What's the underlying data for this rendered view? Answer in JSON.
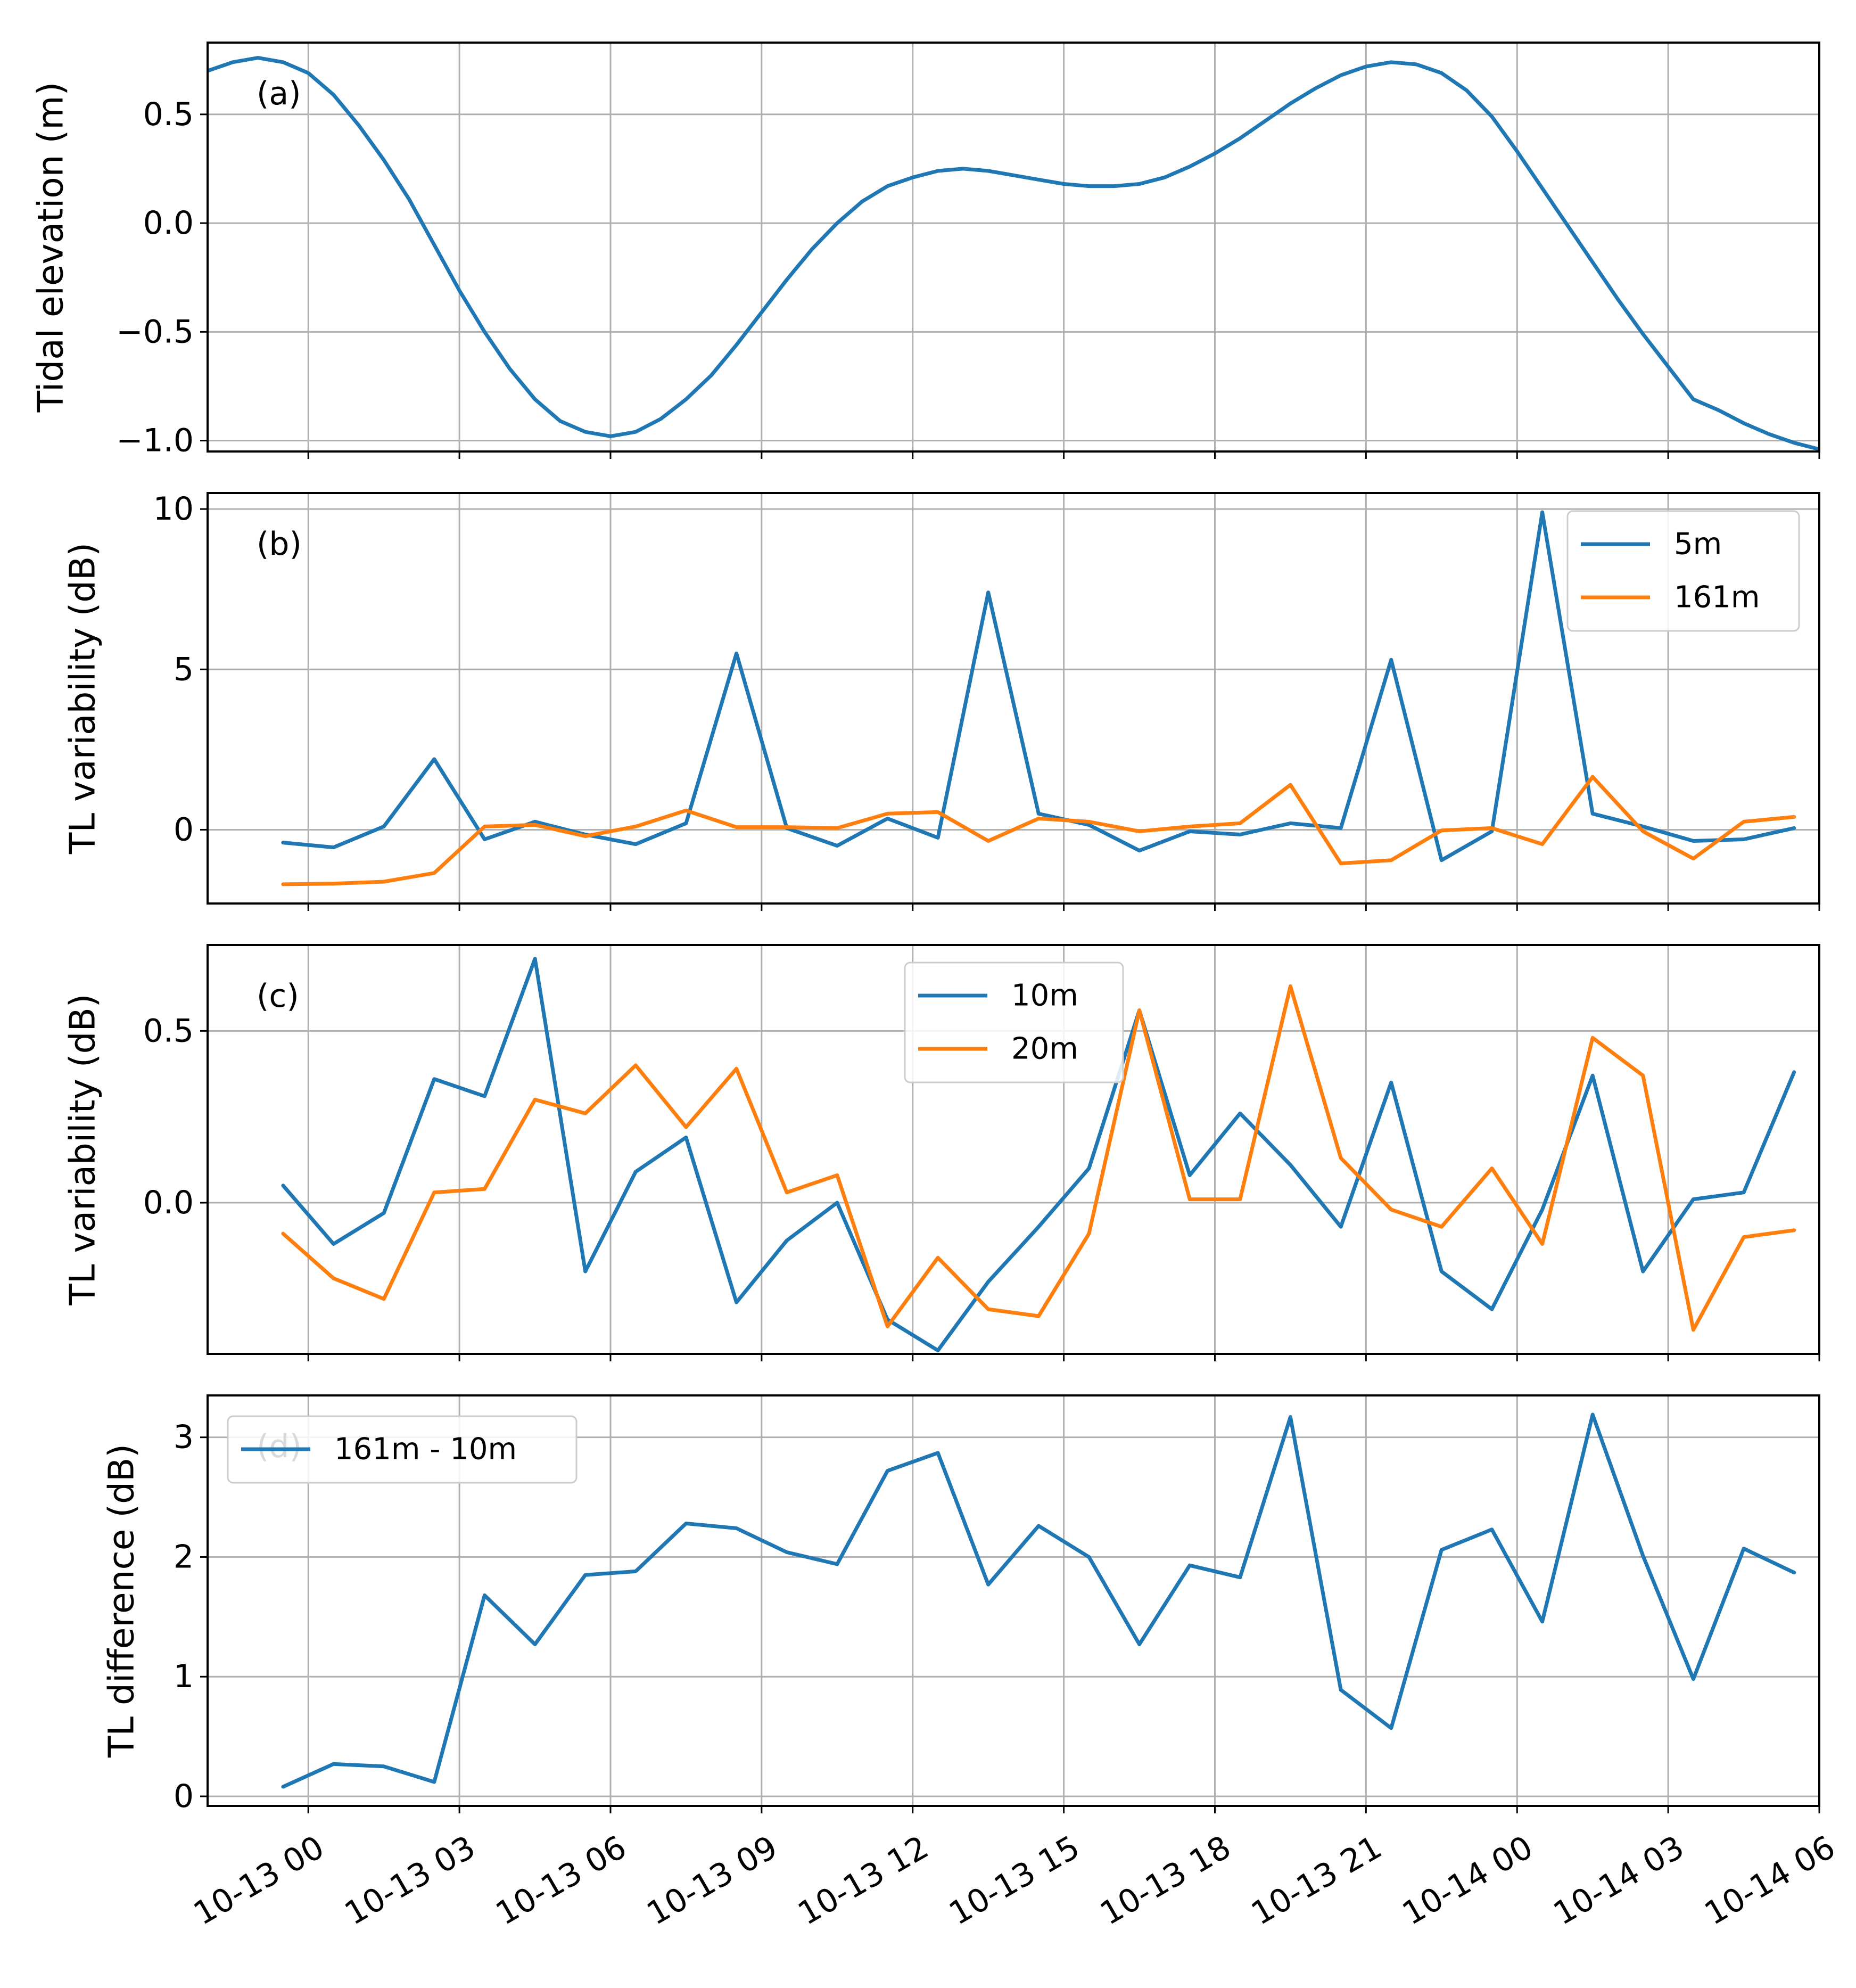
{
  "colors": {
    "blue": "#1f77b4",
    "orange": "#ff7f0e",
    "grid": "#b0b0b0",
    "frame": "#000000"
  },
  "x_axis": {
    "ticks": [
      {
        "h": 0,
        "label": "10-13 00"
      },
      {
        "h": 3,
        "label": "10-13 03"
      },
      {
        "h": 6,
        "label": "10-13 06"
      },
      {
        "h": 9,
        "label": "10-13 09"
      },
      {
        "h": 12,
        "label": "10-13 12"
      },
      {
        "h": 15,
        "label": "10-13 15"
      },
      {
        "h": 18,
        "label": "10-13 18"
      },
      {
        "h": 21,
        "label": "10-13 21"
      },
      {
        "h": 24,
        "label": "10-14 00"
      },
      {
        "h": 27,
        "label": "10-14 03"
      },
      {
        "h": 30,
        "label": "10-14 06"
      }
    ]
  },
  "chart_data": [
    {
      "type": "line",
      "panel": "(a)",
      "ylabel": "Tidal elevation (m)",
      "xlim": [
        -2,
        30
      ],
      "ylim": [
        -1.05,
        0.83
      ],
      "yticks": [
        {
          "v": 0.5,
          "label": "0.5"
        },
        {
          "v": 0.0,
          "label": "0.0"
        },
        {
          "v": -0.5,
          "label": "−0.5"
        },
        {
          "v": -1.0,
          "label": "−1.0"
        }
      ],
      "legend": null,
      "series": [
        {
          "name": "Tidal elevation",
          "color": "#1f77b4",
          "x": [
            -2,
            -1.5,
            -1,
            -0.5,
            0,
            0.5,
            1,
            1.5,
            2,
            2.5,
            3,
            3.5,
            4,
            4.5,
            5,
            5.5,
            6,
            6.5,
            7,
            7.5,
            8,
            8.5,
            9,
            9.5,
            10,
            10.5,
            11,
            11.5,
            12,
            12.5,
            13,
            13.5,
            14,
            14.5,
            15,
            15.5,
            16,
            16.5,
            17,
            17.5,
            18,
            18.5,
            19,
            19.5,
            20,
            20.5,
            21,
            21.5,
            22,
            22.5,
            23,
            23.5,
            24,
            24.5,
            25,
            25.5,
            26,
            26.5,
            27,
            27.5,
            28,
            28.5,
            29,
            29.5,
            30
          ],
          "y": [
            0.7,
            0.74,
            0.76,
            0.74,
            0.69,
            0.59,
            0.45,
            0.29,
            0.11,
            -0.1,
            -0.31,
            -0.5,
            -0.67,
            -0.81,
            -0.91,
            -0.96,
            -0.98,
            -0.96,
            -0.9,
            -0.81,
            -0.7,
            -0.56,
            -0.41,
            -0.26,
            -0.12,
            0.0,
            0.1,
            0.17,
            0.21,
            0.24,
            0.25,
            0.24,
            0.22,
            0.2,
            0.18,
            0.17,
            0.17,
            0.18,
            0.21,
            0.26,
            0.32,
            0.39,
            0.47,
            0.55,
            0.62,
            0.68,
            0.72,
            0.74,
            0.73,
            0.69,
            0.61,
            0.49,
            0.33,
            0.16,
            -0.01,
            -0.18,
            -0.35,
            -0.51,
            -0.66,
            -0.81,
            -0.86,
            -0.92,
            -0.97,
            -1.01,
            -1.04
          ]
        }
      ]
    },
    {
      "type": "line",
      "panel": "(b)",
      "ylabel": "TL variability (dB)",
      "xlim": [
        -2,
        30
      ],
      "ylim": [
        -2.3,
        10.5
      ],
      "yticks": [
        {
          "v": 10,
          "label": "10"
        },
        {
          "v": 5,
          "label": "5"
        },
        {
          "v": 0,
          "label": "0"
        }
      ],
      "legend": {
        "position": "top-right"
      },
      "series": [
        {
          "name": "5m",
          "color": "#1f77b4",
          "x": [
            -0.5,
            0.5,
            1.5,
            2.5,
            3.5,
            4.5,
            5.5,
            6.5,
            7.5,
            8.5,
            9.5,
            10.5,
            11.5,
            12.5,
            13.5,
            14.5,
            15.5,
            16.5,
            17.5,
            18.5,
            19.5,
            20.5,
            21.5,
            22.5,
            23.5,
            24.5,
            25.5,
            26.5,
            27.5,
            28.5,
            29.5
          ],
          "y": [
            -0.4,
            -0.55,
            0.1,
            2.2,
            -0.3,
            0.25,
            -0.15,
            -0.45,
            0.2,
            5.5,
            0.05,
            -0.5,
            0.35,
            -0.25,
            7.4,
            0.5,
            0.15,
            -0.65,
            -0.05,
            -0.15,
            0.2,
            0.05,
            5.3,
            -0.95,
            -0.05,
            9.9,
            0.5,
            0.1,
            -0.35,
            -0.3,
            0.05
          ]
        },
        {
          "name": "161m",
          "color": "#ff7f0e",
          "x": [
            -0.5,
            0.5,
            1.5,
            2.5,
            3.5,
            4.5,
            5.5,
            6.5,
            7.5,
            8.5,
            9.5,
            10.5,
            11.5,
            12.5,
            13.5,
            14.5,
            15.5,
            16.5,
            17.5,
            18.5,
            19.5,
            20.5,
            21.5,
            22.5,
            23.5,
            24.5,
            25.5,
            26.5,
            27.5,
            28.5,
            29.5
          ],
          "y": [
            -1.7,
            -1.68,
            -1.62,
            -1.35,
            0.1,
            0.15,
            -0.2,
            0.1,
            0.6,
            0.08,
            0.08,
            0.05,
            0.5,
            0.55,
            -0.35,
            0.35,
            0.25,
            -0.05,
            0.1,
            0.2,
            1.4,
            -1.05,
            -0.95,
            -0.02,
            0.05,
            -0.45,
            1.65,
            -0.05,
            -0.9,
            0.25,
            0.4
          ]
        }
      ]
    },
    {
      "type": "line",
      "panel": "(c)",
      "ylabel": "TL variability (dB)",
      "xlim": [
        -2,
        30
      ],
      "ylim": [
        -0.44,
        0.75
      ],
      "yticks": [
        {
          "v": 0.5,
          "label": "0.5"
        },
        {
          "v": 0.0,
          "label": "0.0"
        }
      ],
      "legend": {
        "position": "top-center"
      },
      "series": [
        {
          "name": "10m",
          "color": "#1f77b4",
          "x": [
            -0.5,
            0.5,
            1.5,
            2.5,
            3.5,
            4.5,
            5.5,
            6.5,
            7.5,
            8.5,
            9.5,
            10.5,
            11.5,
            12.5,
            13.5,
            14.5,
            15.5,
            16.5,
            17.5,
            18.5,
            19.5,
            20.5,
            21.5,
            22.5,
            23.5,
            24.5,
            25.5,
            26.5,
            27.5,
            28.5,
            29.5
          ],
          "y": [
            0.05,
            -0.12,
            -0.03,
            0.36,
            0.31,
            0.71,
            -0.2,
            0.09,
            0.19,
            -0.29,
            -0.11,
            0.0,
            -0.34,
            -0.43,
            -0.23,
            -0.07,
            0.1,
            0.56,
            0.08,
            0.26,
            0.11,
            -0.07,
            0.35,
            -0.2,
            -0.31,
            -0.02,
            0.37,
            -0.2,
            0.01,
            0.03,
            0.38
          ]
        },
        {
          "name": "20m",
          "color": "#ff7f0e",
          "x": [
            -0.5,
            0.5,
            1.5,
            2.5,
            3.5,
            4.5,
            5.5,
            6.5,
            7.5,
            8.5,
            9.5,
            10.5,
            11.5,
            12.5,
            13.5,
            14.5,
            15.5,
            16.5,
            17.5,
            18.5,
            19.5,
            20.5,
            21.5,
            22.5,
            23.5,
            24.5,
            25.5,
            26.5,
            27.5,
            28.5,
            29.5
          ],
          "y": [
            -0.09,
            -0.22,
            -0.28,
            0.03,
            0.04,
            0.3,
            0.26,
            0.4,
            0.22,
            0.39,
            0.03,
            0.08,
            -0.36,
            -0.16,
            -0.31,
            -0.33,
            -0.09,
            0.56,
            0.01,
            0.01,
            0.63,
            0.13,
            -0.02,
            -0.07,
            0.1,
            -0.12,
            0.48,
            0.37,
            -0.37,
            -0.1,
            -0.08
          ]
        }
      ]
    },
    {
      "type": "line",
      "panel": "(d)",
      "ylabel": "TL difference (dB)",
      "xlim": [
        -2,
        30
      ],
      "ylim": [
        -0.08,
        3.35
      ],
      "yticks": [
        {
          "v": 3,
          "label": "3"
        },
        {
          "v": 2,
          "label": "2"
        },
        {
          "v": 1,
          "label": "1"
        },
        {
          "v": 0,
          "label": "0"
        }
      ],
      "legend": {
        "position": "top-left"
      },
      "series": [
        {
          "name": "161m - 10m",
          "color": "#1f77b4",
          "x": [
            -0.5,
            0.5,
            1.5,
            2.5,
            3.5,
            4.5,
            5.5,
            6.5,
            7.5,
            8.5,
            9.5,
            10.5,
            11.5,
            12.5,
            13.5,
            14.5,
            15.5,
            16.5,
            17.5,
            18.5,
            19.5,
            20.5,
            21.5,
            22.5,
            23.5,
            24.5,
            25.5,
            26.5,
            27.5,
            28.5,
            29.5
          ],
          "y": [
            0.08,
            0.27,
            0.25,
            0.12,
            1.68,
            1.27,
            1.85,
            1.88,
            2.28,
            2.24,
            2.04,
            1.94,
            2.72,
            2.87,
            1.77,
            2.26,
            2.0,
            1.27,
            1.93,
            1.83,
            3.17,
            0.89,
            0.57,
            2.06,
            2.23,
            1.46,
            3.19,
            2.01,
            0.98,
            2.07,
            1.87
          ]
        }
      ]
    }
  ]
}
